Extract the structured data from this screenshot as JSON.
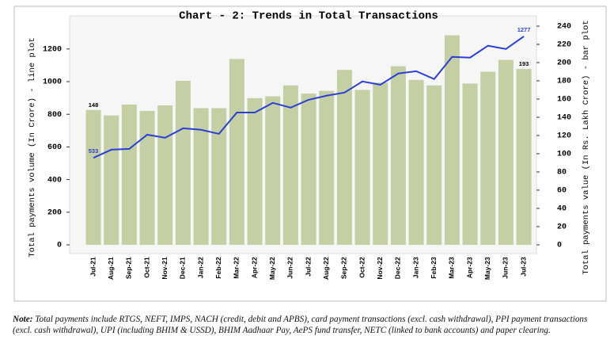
{
  "chart_data": {
    "type": "bar-line",
    "title": "Chart - 2: Trends in Total Transactions",
    "ylabel": "Total payments volume (In Crore) - line plot",
    "y2label": "Total payments value (In Rs. Lakh Crore) - bar plot",
    "categories": [
      "Jul-21",
      "Aug-21",
      "Sep-21",
      "Oct-21",
      "Nov-21",
      "Dec-21",
      "Jan-22",
      "Feb-22",
      "Mar-22",
      "Apr-22",
      "May-22",
      "Jun-22",
      "Jul-22",
      "Aug-22",
      "Sep-22",
      "Oct-22",
      "Nov-22",
      "Dec-22",
      "Jan-23",
      "Feb-23",
      "Mar-23",
      "Apr-23",
      "May-23",
      "Jun-23",
      "Jul-23"
    ],
    "series": [
      {
        "type": "bar",
        "axis": "y2",
        "color": "#c4cfa4",
        "values": [
          148,
          142,
          154,
          147,
          153,
          180,
          150,
          150,
          204,
          161,
          163,
          175,
          166,
          169,
          192,
          170,
          178,
          196,
          181,
          175,
          230,
          177,
          190,
          203,
          193
        ],
        "value_labels": [
          "148",
          null,
          null,
          null,
          null,
          null,
          null,
          null,
          null,
          null,
          null,
          null,
          null,
          null,
          null,
          null,
          null,
          null,
          null,
          null,
          null,
          null,
          null,
          null,
          "193"
        ]
      },
      {
        "type": "line",
        "axis": "y",
        "color": "#2b3fd6",
        "values": [
          533,
          583,
          588,
          675,
          656,
          714,
          705,
          680,
          811,
          811,
          870,
          841,
          889,
          914,
          933,
          1001,
          981,
          1050,
          1064,
          1016,
          1152,
          1147,
          1220,
          1200,
          1277
        ],
        "value_labels": [
          "533",
          null,
          null,
          null,
          null,
          null,
          null,
          null,
          null,
          null,
          null,
          null,
          null,
          null,
          null,
          null,
          null,
          null,
          null,
          null,
          null,
          null,
          null,
          null,
          "1277"
        ]
      }
    ],
    "ylim": [
      -50,
      1340
    ],
    "yticks": [
      0,
      200,
      400,
      600,
      800,
      1000,
      1200
    ],
    "y2lim": [
      -9,
      240
    ],
    "y2ticks": [
      0,
      20,
      40,
      60,
      80,
      100,
      120,
      140,
      160,
      180,
      200,
      220,
      240
    ]
  },
  "note": {
    "label": "Note:",
    "text": "Total payments include RTGS, NEFT, IMPS, NACH (credit, debit and APBS), card payment transactions (excl. cash withdrawal), PPI payment transactions (excl. cash withdrawal), UPI (including BHIM & USSD), BHIM Aadhaar Pay, AePS fund transfer, NETC (linked to bank accounts) and paper clearing."
  }
}
